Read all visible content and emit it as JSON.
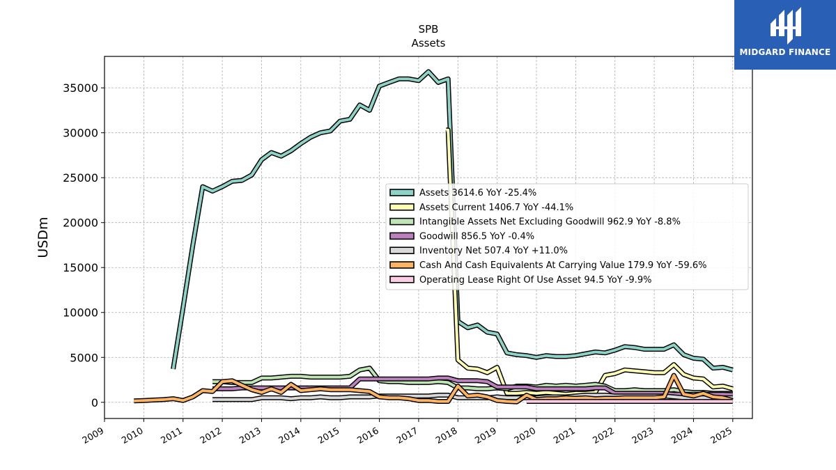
{
  "chart_data": {
    "type": "line",
    "title": "SPB",
    "subtitle": "Assets",
    "ylabel": "USDm",
    "xlabel": "",
    "xlim": [
      2009.0,
      2025.5
    ],
    "ylim": [
      -1800,
      38500
    ],
    "yticks": [
      0,
      5000,
      10000,
      15000,
      20000,
      25000,
      30000,
      35000
    ],
    "ytick_labels": [
      "0",
      "5000",
      "10000",
      "15000",
      "20000",
      "25000",
      "30000",
      "35000"
    ],
    "xticks": [
      2009,
      2010,
      2011,
      2012,
      2013,
      2014,
      2015,
      2016,
      2017,
      2018,
      2019,
      2020,
      2021,
      2022,
      2023,
      2024,
      2025
    ],
    "xtick_labels": [
      "2009",
      "2010",
      "2011",
      "2012",
      "2013",
      "2014",
      "2015",
      "2016",
      "2017",
      "2018",
      "2019",
      "2020",
      "2021",
      "2022",
      "2023",
      "2024",
      "2025"
    ],
    "grid": true,
    "legend_position": "center-right",
    "series": [
      {
        "name": "Assets",
        "legend_label": "Assets  3614.6 YoY -25.4%",
        "color": "#8dd3c7",
        "x": [
          2010.75,
          2011.0,
          2011.25,
          2011.5,
          2011.75,
          2012.0,
          2012.25,
          2012.5,
          2012.75,
          2013.0,
          2013.25,
          2013.5,
          2013.75,
          2014.0,
          2014.25,
          2014.5,
          2014.75,
          2015.0,
          2015.25,
          2015.5,
          2015.75,
          2016.0,
          2016.25,
          2016.5,
          2016.75,
          2017.0,
          2017.25,
          2017.5,
          2017.75,
          2018.0,
          2018.25,
          2018.5,
          2018.75,
          2019.0,
          2019.25,
          2019.5,
          2019.75,
          2020.0,
          2020.25,
          2020.5,
          2020.75,
          2021.0,
          2021.25,
          2021.5,
          2021.75,
          2022.0,
          2022.25,
          2022.5,
          2022.75,
          2023.0,
          2023.25,
          2023.5,
          2023.75,
          2024.0,
          2024.25,
          2024.5,
          2024.75,
          2025.0
        ],
        "values": [
          3700,
          10500,
          17500,
          24000,
          23500,
          24000,
          24600,
          24700,
          25300,
          27000,
          27800,
          27400,
          28000,
          28800,
          29500,
          30000,
          30200,
          31300,
          31500,
          33100,
          32500,
          35200,
          35600,
          36000,
          36000,
          35800,
          36800,
          35600,
          36000,
          9000,
          8300,
          8600,
          7800,
          7600,
          5500,
          5300,
          5200,
          5000,
          5200,
          5100,
          5100,
          5200,
          5400,
          5600,
          5500,
          5800,
          6200,
          6100,
          5900,
          5900,
          5900,
          6400,
          5300,
          4900,
          4800,
          3800,
          3900,
          3600
        ]
      },
      {
        "name": "Assets Current",
        "legend_label": "Assets Current  1406.7 YoY -44.1%",
        "color": "#ffffb3",
        "x": [
          2017.7,
          2017.75,
          2018.0,
          2018.25,
          2018.5,
          2018.75,
          2019.0,
          2019.25,
          2019.5,
          2019.75,
          2020.0,
          2020.25,
          2020.5,
          2020.75,
          2021.0,
          2021.25,
          2021.5,
          2021.75,
          2022.0,
          2022.25,
          2022.5,
          2022.75,
          2023.0,
          2023.25,
          2023.5,
          2023.75,
          2024.0,
          2024.25,
          2024.5,
          2024.75,
          2025.0
        ],
        "values": [
          30300,
          30300,
          4700,
          3800,
          3700,
          3300,
          3900,
          1000,
          1000,
          1100,
          1000,
          1100,
          1000,
          900,
          1000,
          1000,
          1100,
          3000,
          3200,
          3600,
          3500,
          3400,
          3300,
          3300,
          4200,
          3100,
          2700,
          2600,
          1700,
          1800,
          1500
        ]
      },
      {
        "name": "Intangible Assets Net Excluding Goodwill",
        "legend_label": "Intangible Assets Net Excluding Goodwill  962.9 YoY -8.8%",
        "color": "#bfe5b4",
        "x": [
          2011.75,
          2012.0,
          2012.25,
          2012.5,
          2012.75,
          2013.0,
          2013.25,
          2013.5,
          2013.75,
          2014.0,
          2014.25,
          2014.5,
          2014.75,
          2015.0,
          2015.25,
          2015.5,
          2015.75,
          2016.0,
          2016.25,
          2016.5,
          2016.75,
          2017.0,
          2017.25,
          2017.5,
          2017.75,
          2018.0,
          2018.25,
          2018.5,
          2018.75,
          2019.0,
          2019.25,
          2019.5,
          2019.75,
          2020.0,
          2020.25,
          2020.5,
          2020.75,
          2021.0,
          2021.25,
          2021.5,
          2021.75,
          2022.0,
          2022.25,
          2022.5,
          2022.75,
          2023.0,
          2023.25,
          2023.5,
          2023.75,
          2024.0,
          2024.25,
          2024.5,
          2024.75,
          2025.0
        ],
        "values": [
          2300,
          2300,
          2200,
          2200,
          2200,
          2700,
          2700,
          2800,
          2900,
          2900,
          2800,
          2800,
          2800,
          2800,
          2900,
          3600,
          3800,
          2400,
          2300,
          2300,
          2200,
          2200,
          2200,
          2300,
          2200,
          1600,
          1600,
          1500,
          1500,
          1600,
          1500,
          1800,
          1800,
          1700,
          1900,
          1800,
          1900,
          1800,
          1900,
          2000,
          1800,
          1300,
          1300,
          1400,
          1300,
          1300,
          1300,
          1400,
          1200,
          1100,
          1100,
          1000,
          1000,
          1000
        ]
      },
      {
        "name": "Goodwill",
        "legend_label": "Goodwill  856.5 YoY -0.4%",
        "color": "#bc80bd",
        "x": [
          2011.75,
          2012.0,
          2012.25,
          2012.5,
          2012.75,
          2013.0,
          2013.25,
          2013.5,
          2013.75,
          2014.0,
          2014.25,
          2014.5,
          2014.75,
          2015.0,
          2015.25,
          2015.5,
          2015.75,
          2016.0,
          2016.25,
          2016.5,
          2016.75,
          2017.0,
          2017.25,
          2017.5,
          2017.75,
          2018.0,
          2018.25,
          2018.5,
          2018.75,
          2019.0,
          2019.25,
          2019.5,
          2019.75,
          2020.0,
          2020.25,
          2020.5,
          2020.75,
          2021.0,
          2021.25,
          2021.5,
          2021.75,
          2022.0,
          2022.25,
          2022.5,
          2022.75,
          2023.0,
          2023.25,
          2023.5,
          2023.75,
          2024.0,
          2024.25,
          2024.5,
          2024.75,
          2025.0
        ],
        "values": [
          1500,
          1500,
          1500,
          1600,
          1600,
          1600,
          1600,
          1600,
          1600,
          1600,
          1600,
          1600,
          1600,
          1600,
          1600,
          2600,
          2600,
          2600,
          2600,
          2600,
          2600,
          2600,
          2600,
          2700,
          2700,
          2400,
          2400,
          2400,
          2300,
          1700,
          1700,
          1700,
          1700,
          1500,
          1500,
          1500,
          1500,
          1500,
          1500,
          1600,
          1600,
          1000,
          1000,
          1000,
          1000,
          1000,
          1000,
          900,
          900,
          900,
          900,
          900,
          900,
          860
        ]
      },
      {
        "name": "Inventory Net",
        "legend_label": "Inventory Net  507.4 YoY +11.0%",
        "color": "#d9d9d9",
        "x": [
          2011.75,
          2012.0,
          2012.25,
          2012.5,
          2012.75,
          2013.0,
          2013.25,
          2013.5,
          2013.75,
          2014.0,
          2014.25,
          2014.5,
          2014.75,
          2015.0,
          2015.25,
          2015.5,
          2015.75,
          2016.0,
          2016.25,
          2016.5,
          2016.75,
          2017.0,
          2017.25,
          2017.5,
          2017.75,
          2018.0,
          2018.25,
          2018.5,
          2018.75,
          2019.0,
          2019.25,
          2019.5,
          2019.75,
          2020.0,
          2020.25,
          2020.5,
          2020.75,
          2021.0,
          2021.25,
          2021.5,
          2021.75,
          2022.0,
          2022.25,
          2022.5,
          2022.75,
          2023.0,
          2023.25,
          2023.5,
          2023.75,
          2024.0,
          2024.25,
          2024.5,
          2024.75,
          2025.0
        ],
        "values": [
          300,
          300,
          300,
          300,
          300,
          500,
          500,
          500,
          400,
          500,
          500,
          600,
          500,
          500,
          600,
          600,
          600,
          700,
          700,
          700,
          700,
          700,
          700,
          800,
          800,
          500,
          500,
          500,
          500,
          600,
          500,
          500,
          500,
          500,
          600,
          600,
          600,
          700,
          800,
          800,
          800,
          700,
          700,
          700,
          700,
          700,
          700,
          600,
          500,
          500,
          500,
          500,
          500,
          500
        ]
      },
      {
        "name": "Cash And Cash Equivalents At Carrying Value",
        "legend_label": "Cash And Cash Equivalents At Carrying Value  179.9 YoY -59.6%",
        "color": "#fdb462",
        "x": [
          2009.75,
          2010.0,
          2010.25,
          2010.5,
          2010.75,
          2011.0,
          2011.25,
          2011.5,
          2011.75,
          2012.0,
          2012.25,
          2012.5,
          2012.75,
          2013.0,
          2013.25,
          2013.5,
          2013.75,
          2014.0,
          2014.25,
          2014.5,
          2014.75,
          2015.0,
          2015.25,
          2015.5,
          2015.75,
          2016.0,
          2016.25,
          2016.5,
          2016.75,
          2017.0,
          2017.25,
          2017.5,
          2017.75,
          2018.0,
          2018.25,
          2018.5,
          2018.75,
          2019.0,
          2019.25,
          2019.5,
          2019.75,
          2020.0,
          2020.25,
          2020.5,
          2020.75,
          2021.0,
          2021.25,
          2021.5,
          2021.75,
          2022.0,
          2022.25,
          2022.5,
          2022.75,
          2023.0,
          2023.25,
          2023.5,
          2023.75,
          2024.0,
          2024.25,
          2024.5,
          2024.75,
          2025.0
        ],
        "values": [
          150,
          200,
          250,
          300,
          400,
          200,
          600,
          1300,
          1200,
          2300,
          2400,
          1900,
          1400,
          1100,
          1500,
          1100,
          2000,
          1300,
          1400,
          1500,
          1400,
          1400,
          1400,
          1300,
          1200,
          600,
          500,
          500,
          400,
          200,
          200,
          100,
          100,
          1800,
          700,
          800,
          600,
          200,
          100,
          50,
          800,
          300,
          400,
          400,
          500,
          450,
          500,
          400,
          450,
          450,
          500,
          500,
          500,
          500,
          600,
          3000,
          900,
          700,
          1000,
          600,
          500,
          200
        ]
      },
      {
        "name": "Operating Lease Right Of Use Asset",
        "legend_label": "Operating Lease Right Of Use Asset  94.5 YoY -9.9%",
        "color": "#fccde5",
        "x": [
          2019.75,
          2020.0,
          2020.25,
          2020.5,
          2020.75,
          2021.0,
          2021.25,
          2021.5,
          2021.75,
          2022.0,
          2022.25,
          2022.5,
          2022.75,
          2023.0,
          2023.25,
          2023.5,
          2023.75,
          2024.0,
          2024.25,
          2024.5,
          2024.75,
          2025.0
        ],
        "values": [
          100,
          100,
          100,
          100,
          100,
          100,
          100,
          100,
          100,
          100,
          100,
          100,
          100,
          100,
          100,
          100,
          100,
          100,
          100,
          100,
          100,
          95
        ]
      }
    ]
  },
  "logo": {
    "text": "MIDGARD FINANCE",
    "bg_color": "#2a5fb6"
  }
}
